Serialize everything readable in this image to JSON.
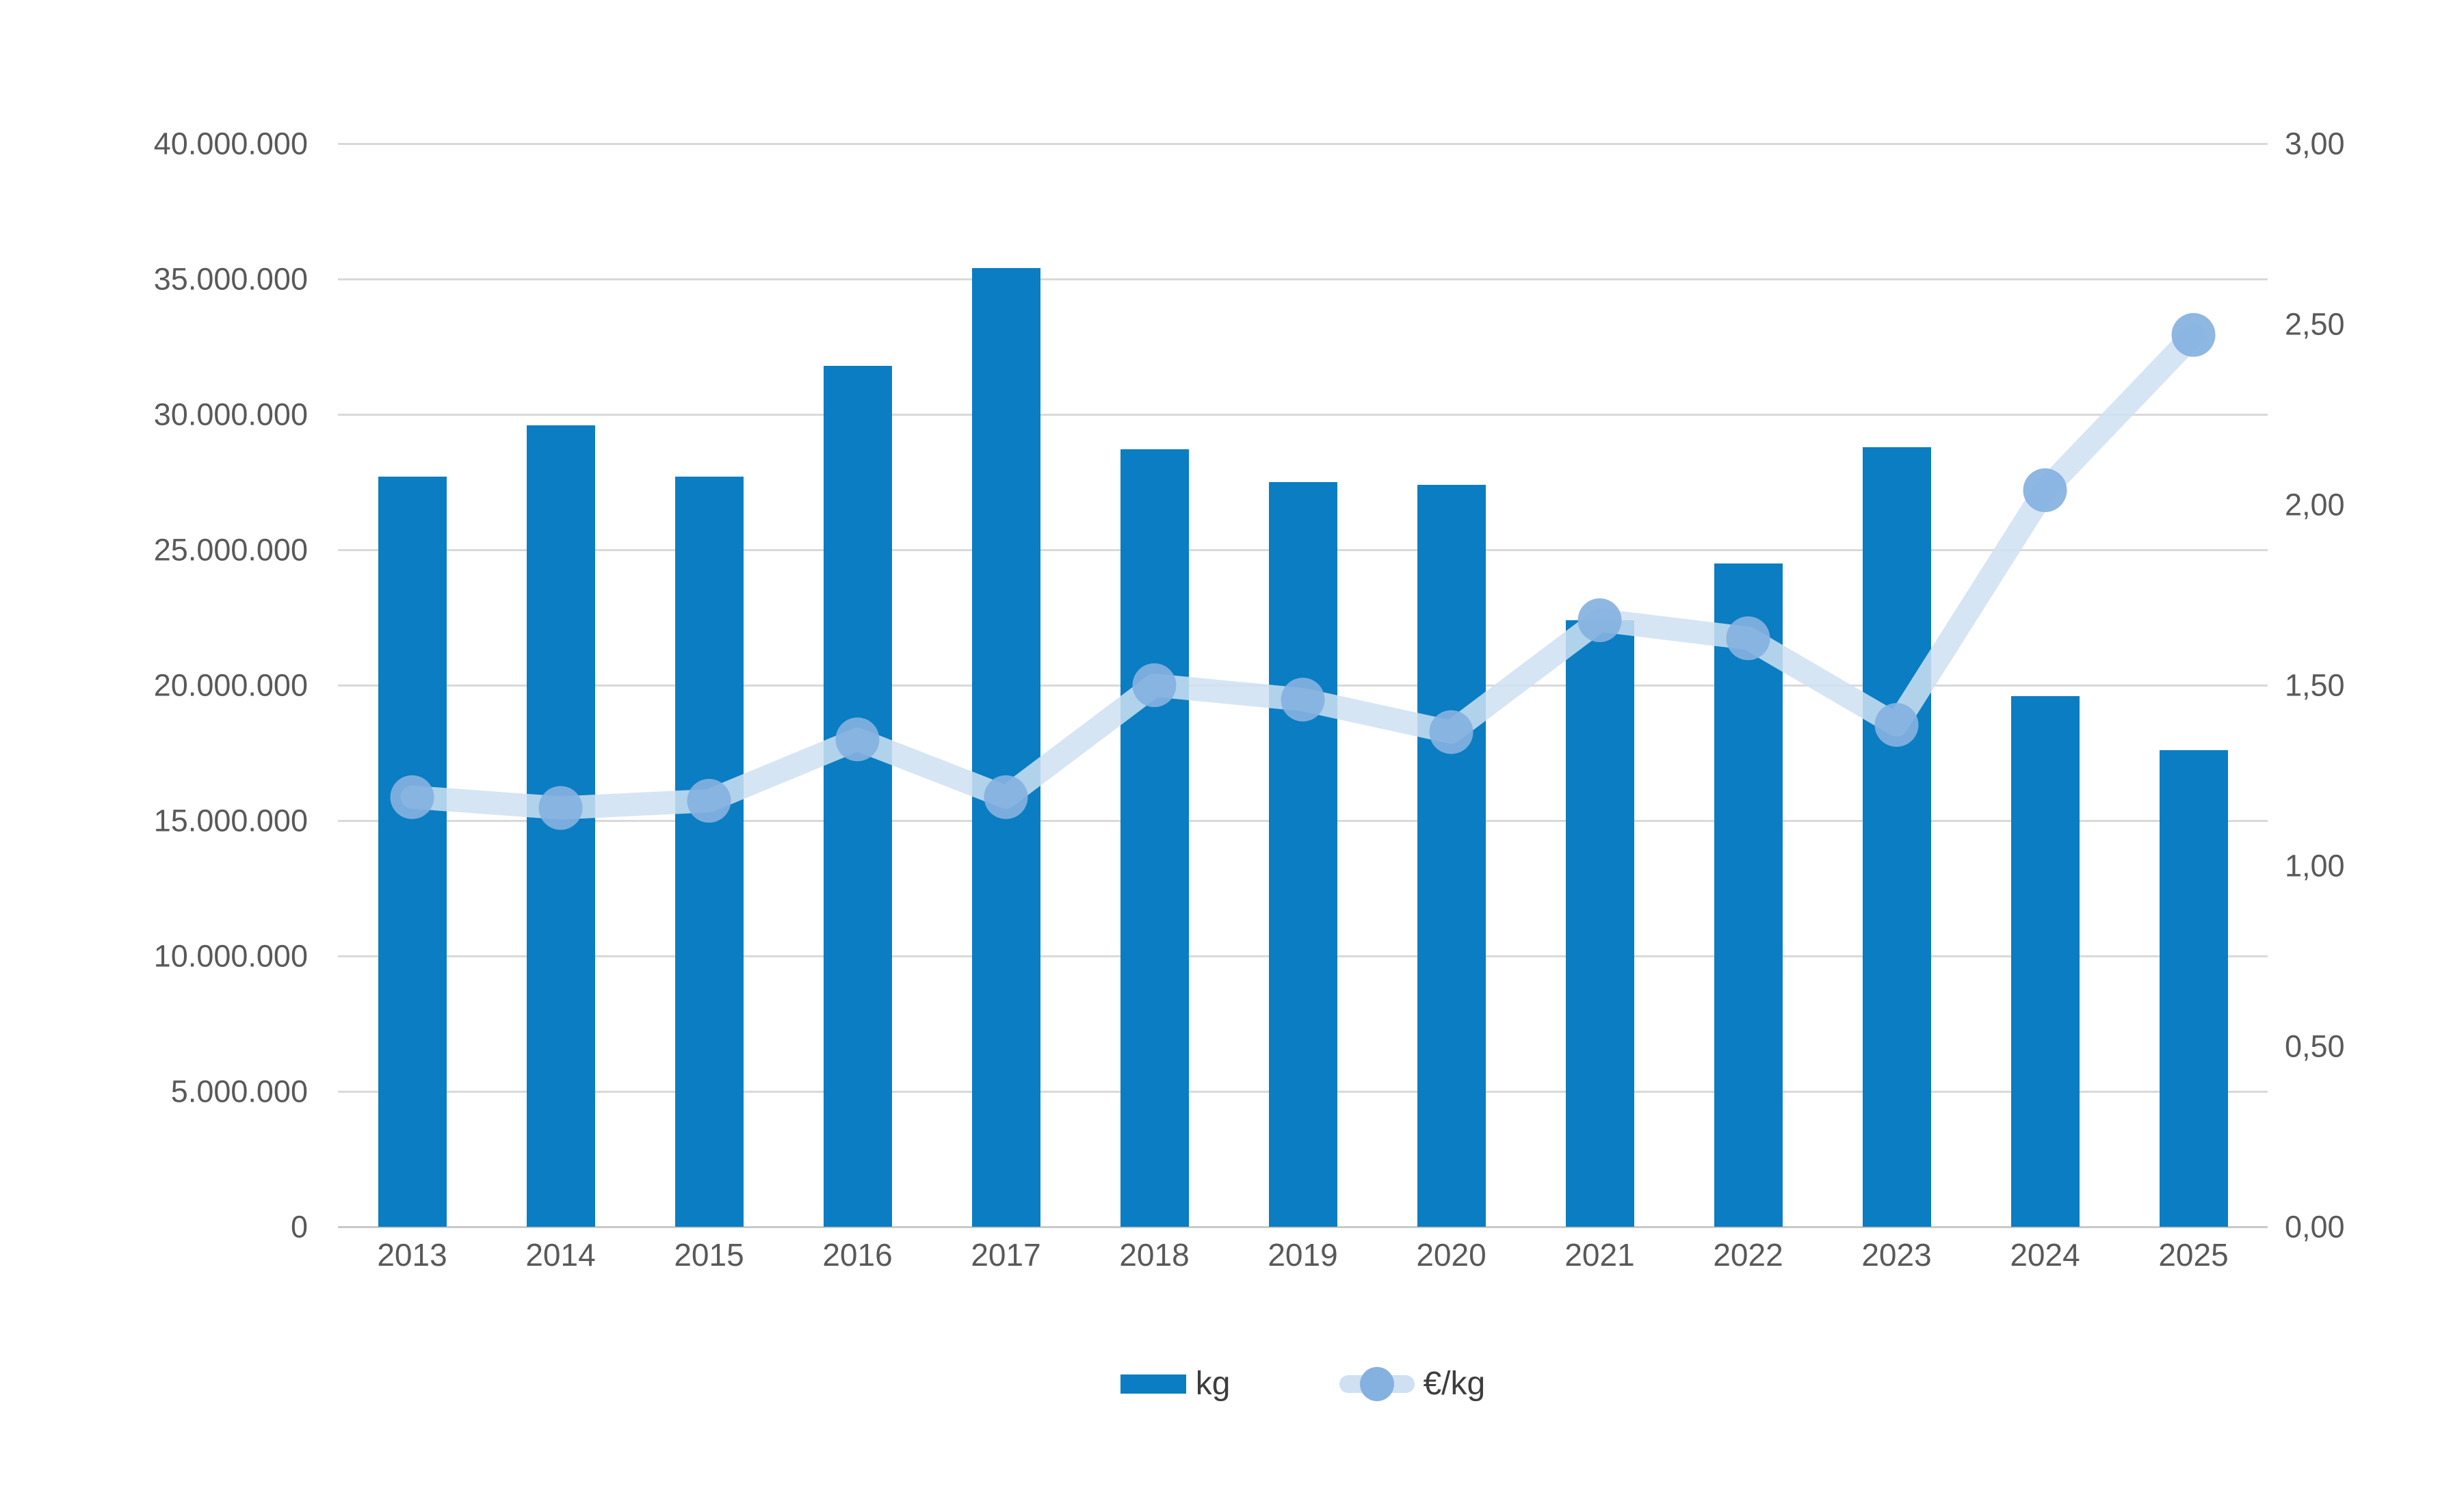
{
  "chart_data": {
    "type": "combo",
    "title": "",
    "categories": [
      "2013",
      "2014",
      "2015",
      "2016",
      "2017",
      "2018",
      "2019",
      "2020",
      "2021",
      "2022",
      "2023",
      "2024",
      "2025"
    ],
    "series": [
      {
        "name": "kg",
        "type": "bar",
        "axis": "left",
        "color": "#0b7dc2",
        "values": [
          27700000,
          29600000,
          27700000,
          31800000,
          35400000,
          28700000,
          27500000,
          27400000,
          22400000,
          24500000,
          28800000,
          19600000,
          17600000
        ]
      },
      {
        "name": "€/kg",
        "type": "line",
        "axis": "right",
        "color": "#cfe0f2",
        "marker_color": "#84b1e0",
        "values": [
          1.19,
          1.16,
          1.18,
          1.35,
          1.19,
          1.5,
          1.46,
          1.37,
          1.68,
          1.63,
          1.39,
          2.04,
          2.47
        ]
      }
    ],
    "left_axis": {
      "min": 0,
      "max": 40000000,
      "step": 5000000,
      "tick_labels": [
        "0",
        "5.000.000",
        "10.000.000",
        "15.000.000",
        "20.000.000",
        "25.000.000",
        "30.000.000",
        "35.000.000",
        "40.000.000"
      ]
    },
    "right_axis": {
      "min": 0,
      "max": 3,
      "step": 0.5,
      "tick_labels": [
        "0,00",
        "0,50",
        "1,00",
        "1,50",
        "2,00",
        "2,50",
        "3,00"
      ]
    },
    "grid": true,
    "legend_position": "bottom",
    "colors": {
      "gridline": "#d9d9d9",
      "axis_text": "#595959",
      "legend_text": "#3d3d3d"
    }
  },
  "legend": {
    "items": [
      {
        "label": "kg"
      },
      {
        "label": "€/kg"
      }
    ]
  }
}
